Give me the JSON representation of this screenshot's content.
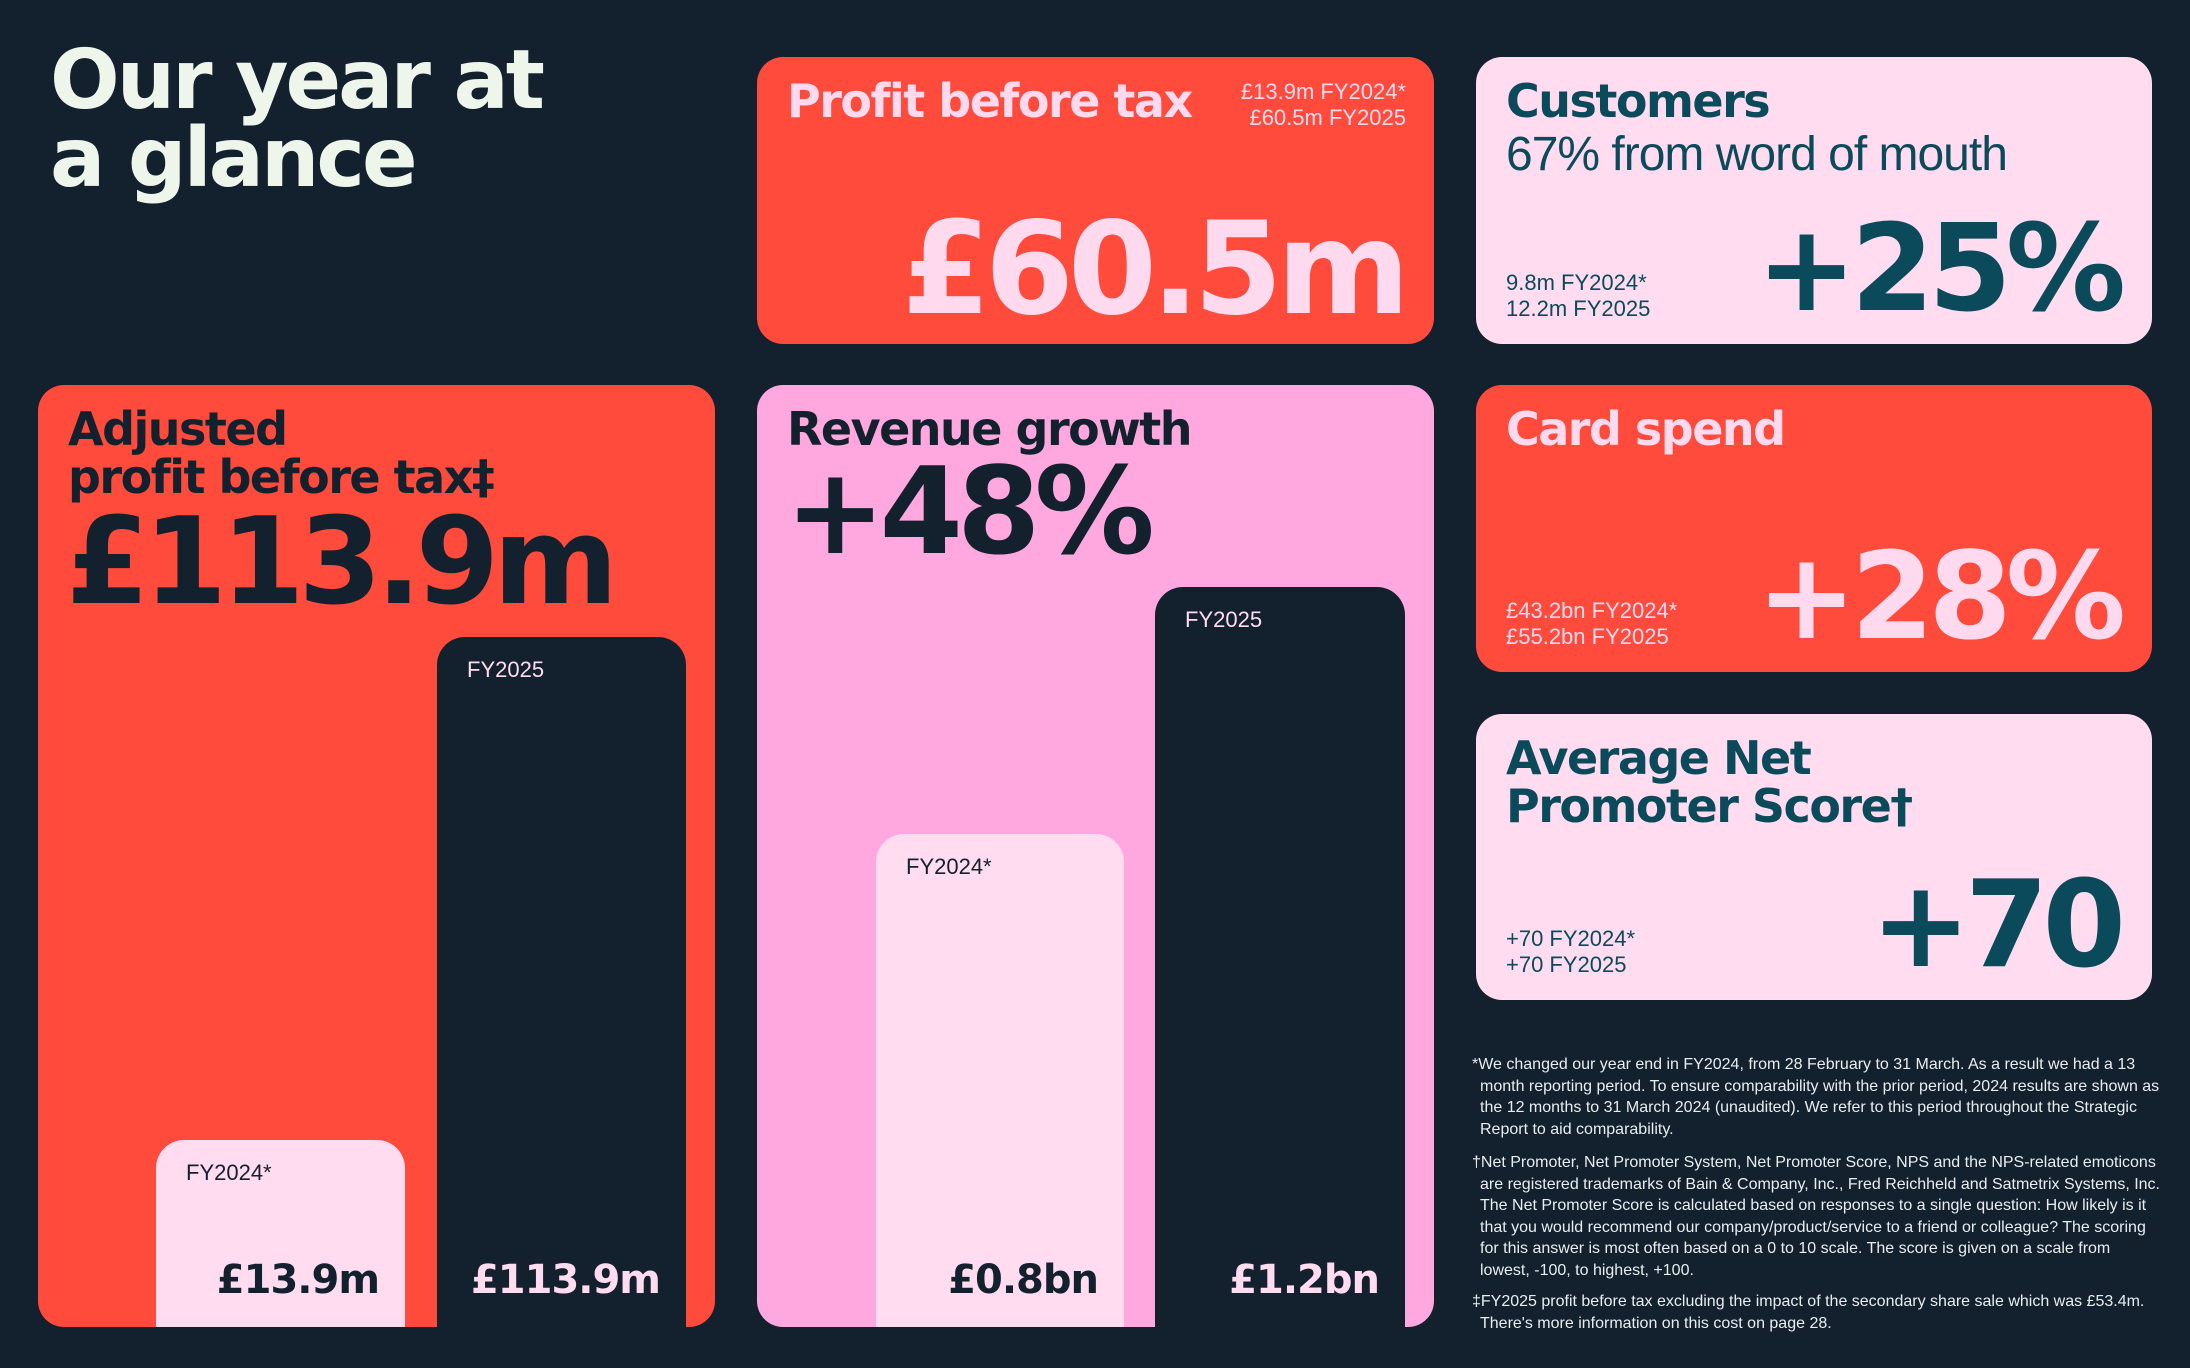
{
  "title_lines": [
    "Our year at",
    "a glance"
  ],
  "profit_before_tax": {
    "title": "Profit before tax",
    "fy2024": "£13.9m FY2024*",
    "fy2025": "£60.5m FY2025",
    "value": "£60.5m"
  },
  "customers": {
    "title": "Customers",
    "subtitle": "67% from word of mouth",
    "fy2024": "9.8m FY2024*",
    "fy2025": "12.2m FY2025",
    "value": "+25%"
  },
  "adjusted_profit": {
    "title_lines": [
      "Adjusted",
      "profit before tax‡"
    ],
    "value": "£113.9m",
    "bars": [
      {
        "label": "FY2024*",
        "value": "£13.9m"
      },
      {
        "label": "FY2025",
        "value": "£113.9m"
      }
    ]
  },
  "revenue": {
    "title": "Revenue growth",
    "value": "+48%",
    "bars": [
      {
        "label": "FY2024*",
        "value": "£0.8bn"
      },
      {
        "label": "FY2025",
        "value": "£1.2bn"
      }
    ]
  },
  "card_spend": {
    "title": "Card spend",
    "fy2024": "£43.2bn FY2024*",
    "fy2025": "£55.2bn FY2025",
    "value": "+28%"
  },
  "nps": {
    "title_lines": [
      "Average Net",
      "Promoter Score†"
    ],
    "fy2024": "+70 FY2024*",
    "fy2025": "+70 FY2025",
    "value": "+70"
  },
  "footnotes": [
    "*We changed our year end in FY2024, from 28 February to 31 March. As a result we had a 13 month reporting period. To ensure comparability with the prior period, 2024 results are shown as the 12 months to 31 March 2024 (unaudited). We refer to this period throughout the Strategic Report to aid comparability.",
    "†Net Promoter, Net Promoter System, Net Promoter Score, NPS and the NPS-related emoticons are registered trademarks of Bain & Company, Inc., Fred Reichheld and Satmetrix Systems, Inc. The Net Promoter Score is calculated based on responses to a single question: How likely is it that you would recommend our company/product/service to a friend or colleague? The scoring for this answer is most often based on a 0 to 10 scale. The score is given on a scale from lowest, -100, to highest, +100.",
    "‡FY2025 profit before tax excluding the impact of the secondary share sale which was £53.4m. There's more information on this cost on page 28."
  ]
}
